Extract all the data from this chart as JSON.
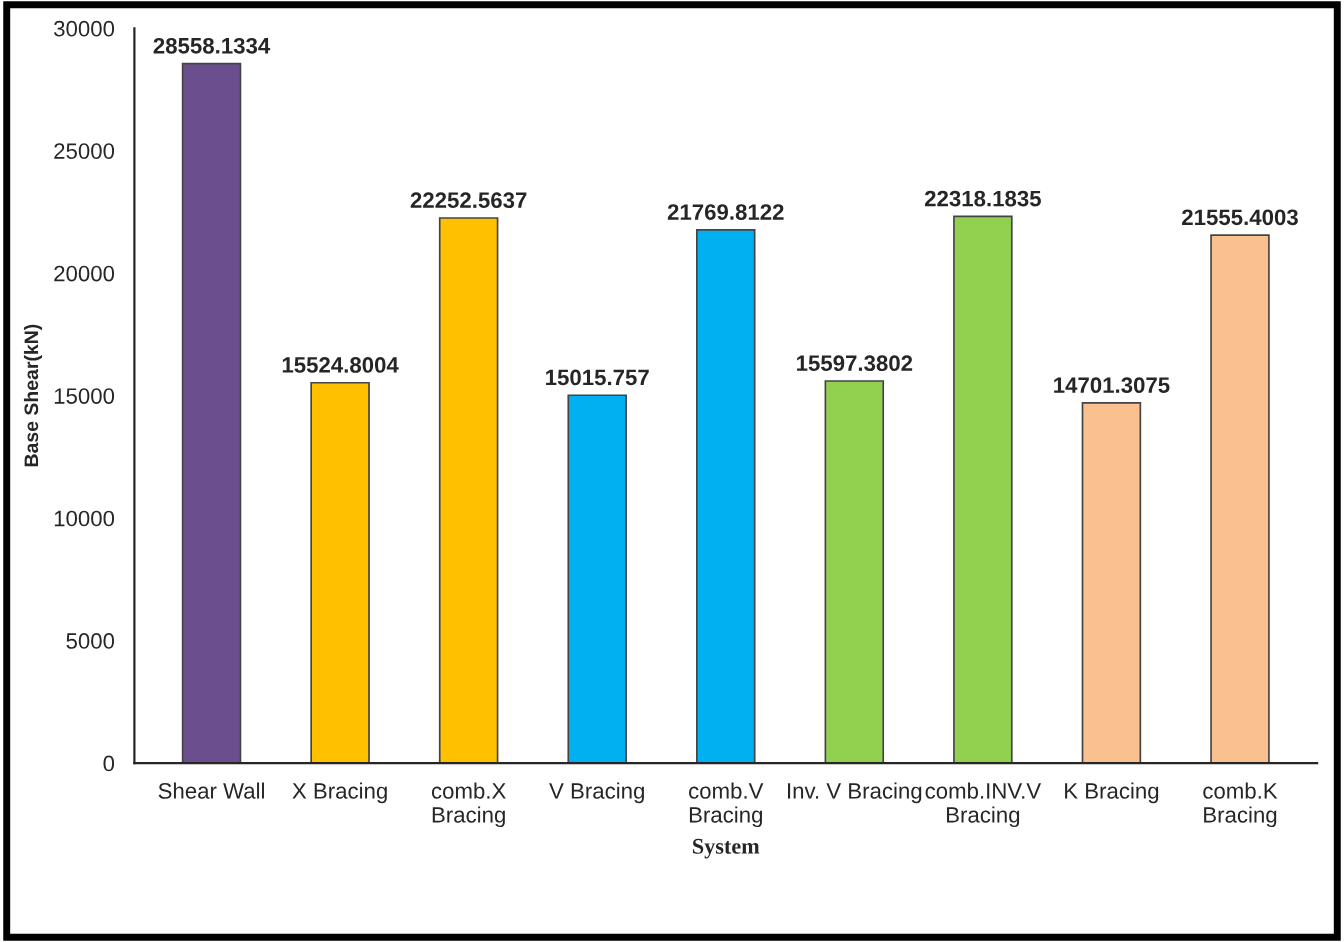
{
  "chart_data": {
    "type": "bar",
    "xlabel": "System",
    "ylabel": "Base Shear(kN)",
    "categories": [
      "Shear Wall",
      "X Bracing",
      "comb.X\nBracing",
      "V Bracing",
      "comb.V\nBracing",
      "Inv. V Bracing",
      "comb.INV.V\nBracing",
      "K Bracing",
      "comb.K\nBracing"
    ],
    "values": [
      28558.1334,
      15524.8004,
      22252.5637,
      15015.757,
      21769.8122,
      15597.3802,
      22318.1835,
      14701.3075,
      21555.4003
    ],
    "colors": [
      "#6b4e8e",
      "#ffc000",
      "#ffc000",
      "#00b0f0",
      "#00b0f0",
      "#92d050",
      "#92d050",
      "#fac090",
      "#fac090"
    ],
    "ylim": [
      0,
      30000
    ],
    "yticks": [
      0,
      5000,
      10000,
      15000,
      20000,
      25000,
      30000
    ],
    "grid": false,
    "data_labels": true
  }
}
